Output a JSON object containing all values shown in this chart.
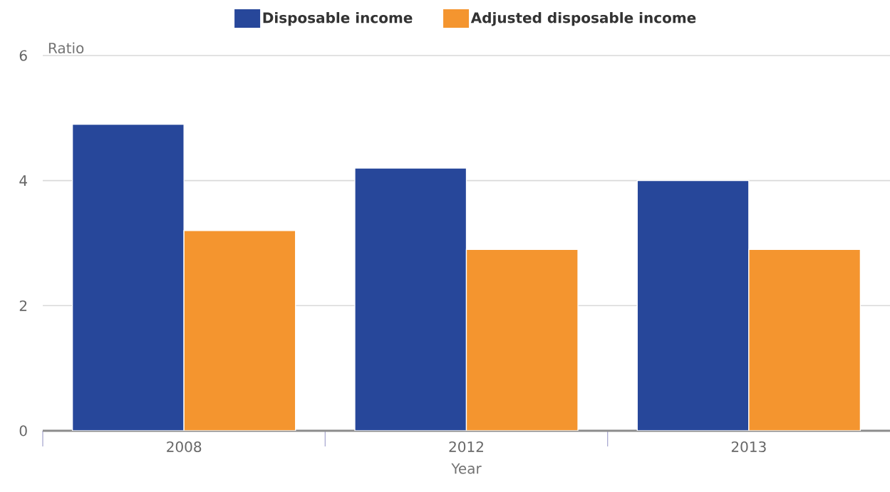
{
  "chart_data": {
    "type": "bar",
    "categories": [
      "2008",
      "2012",
      "2013"
    ],
    "xlabel": "Year",
    "ylabel": "Ratio",
    "series": [
      {
        "name": "Disposable income",
        "color": "#27479a",
        "values": [
          4.9,
          4.2,
          4.0
        ]
      },
      {
        "name": "Adjusted disposable income",
        "color": "#f4952f",
        "values": [
          3.2,
          2.9,
          2.9
        ]
      }
    ],
    "ylim": [
      0,
      6
    ],
    "yticks": [
      0,
      2,
      4,
      6
    ],
    "grid": "y",
    "legend": "top"
  }
}
